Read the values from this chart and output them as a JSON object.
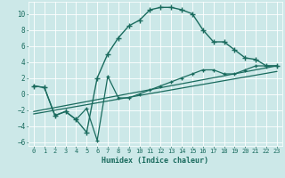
{
  "xlabel": "Humidex (Indice chaleur)",
  "bg_color": "#cce8e8",
  "grid_color": "#ffffff",
  "line_color": "#1a6b5e",
  "xlim": [
    -0.5,
    23.5
  ],
  "ylim": [
    -6.5,
    11.5
  ],
  "xticks": [
    0,
    1,
    2,
    3,
    4,
    5,
    6,
    7,
    8,
    9,
    10,
    11,
    12,
    13,
    14,
    15,
    16,
    17,
    18,
    19,
    20,
    21,
    22,
    23
  ],
  "yticks": [
    -6,
    -4,
    -2,
    0,
    2,
    4,
    6,
    8,
    10
  ],
  "curve1_x": [
    0,
    1,
    2,
    3,
    4,
    5,
    6,
    7,
    8,
    9,
    10,
    11,
    12,
    13,
    14,
    15,
    16,
    17,
    18,
    19,
    20,
    21,
    22,
    23
  ],
  "curve1_y": [
    1.0,
    0.8,
    -2.7,
    -2.2,
    -3.2,
    -4.8,
    2.0,
    5.0,
    7.0,
    8.5,
    9.2,
    10.5,
    10.8,
    10.8,
    10.5,
    10.0,
    8.0,
    6.5,
    6.5,
    5.5,
    4.5,
    4.3,
    3.5,
    3.5
  ],
  "curve2_x": [
    0,
    1,
    2,
    3,
    4,
    5,
    6,
    7,
    8,
    9,
    10,
    11,
    12,
    13,
    14,
    15,
    16,
    17,
    18,
    19,
    20,
    21,
    22,
    23
  ],
  "curve2_y": [
    1.0,
    0.8,
    -2.7,
    -2.2,
    -3.2,
    -1.8,
    -5.8,
    2.2,
    -0.5,
    -0.5,
    0.0,
    0.5,
    1.0,
    1.5,
    2.0,
    2.5,
    3.0,
    3.0,
    2.5,
    2.5,
    3.0,
    3.5,
    3.5,
    3.5
  ],
  "curve3_x": [
    0,
    23
  ],
  "curve3_y": [
    -2.2,
    3.5
  ],
  "curve4_x": [
    0,
    23
  ],
  "curve4_y": [
    -2.5,
    2.8
  ]
}
